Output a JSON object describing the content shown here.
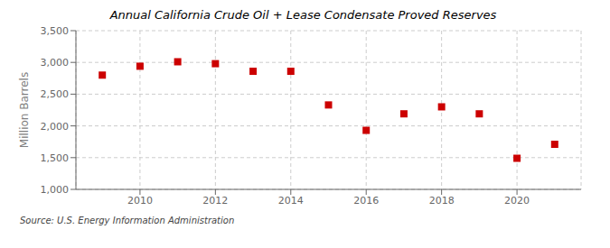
{
  "chart_data": {
    "type": "scatter",
    "title": "Annual California Crude Oil + Lease Condensate Proved Reserves",
    "ylabel": "Million Barrels",
    "annotations": [
      "Source: U.S. Energy Information Administration"
    ],
    "x": [
      2009,
      2010,
      2011,
      2012,
      2013,
      2014,
      2015,
      2016,
      2017,
      2018,
      2019,
      2020,
      2021
    ],
    "values": [
      2800,
      2940,
      3010,
      2980,
      2860,
      2860,
      2330,
      1930,
      2190,
      2300,
      2190,
      1490,
      1710
    ],
    "color": "#cc0000",
    "marker": "square",
    "xlim": [
      2008.3,
      2021.7
    ],
    "xticks": [
      2010,
      2012,
      2014,
      2016,
      2018,
      2020
    ],
    "ylim": [
      1000,
      3500
    ],
    "yticks": [
      {
        "value": 1000,
        "label": "1,000"
      },
      {
        "value": 1500,
        "label": "1,500"
      },
      {
        "value": 2000,
        "label": "2,000"
      },
      {
        "value": 2500,
        "label": "2,500"
      },
      {
        "value": 3000,
        "label": "3,000"
      },
      {
        "value": 3500,
        "label": "3,500"
      }
    ],
    "grid": true
  }
}
